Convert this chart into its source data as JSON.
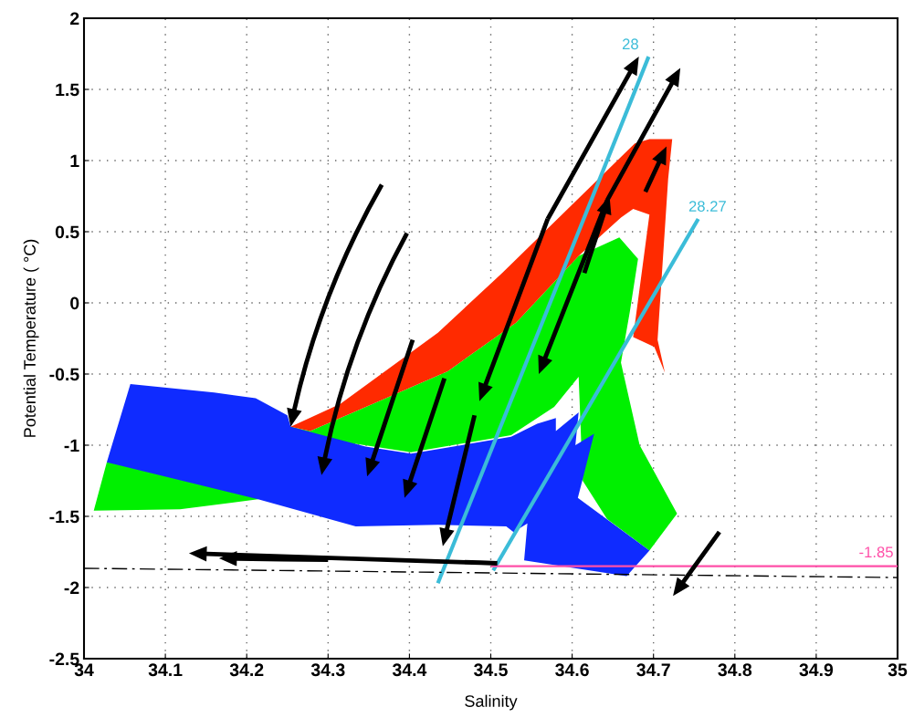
{
  "chart_data": {
    "type": "area",
    "xlabel": "Salinity",
    "ylabel": "Potential Temperature ( °C)",
    "xlim": [
      34,
      35
    ],
    "ylim": [
      -2.5,
      2
    ],
    "xticks": [
      34,
      34.1,
      34.2,
      34.3,
      34.4,
      34.5,
      34.6,
      34.7,
      34.8,
      34.9,
      35
    ],
    "yticks": [
      -2.5,
      -2,
      -1.5,
      -1,
      -0.5,
      0,
      0.5,
      1,
      1.5,
      2
    ],
    "grid": true,
    "legend": false,
    "series": [
      {
        "color": "#00f000",
        "x": [
          34.012,
          34.028,
          34.254,
          34.278,
          34.371,
          34.447,
          34.531,
          34.608,
          34.658,
          34.681,
          34.671,
          34.66,
          34.683,
          34.729,
          34.695,
          34.643,
          34.613,
          34.608,
          34.578,
          34.525,
          34.402,
          34.334,
          34.214,
          34.118
        ],
        "values": [
          -1.46,
          -1.12,
          -0.87,
          -0.9,
          -0.67,
          -0.48,
          -0.14,
          0.33,
          0.46,
          0.31,
          -0.06,
          -0.42,
          -1.0,
          -1.48,
          -1.74,
          -1.52,
          -1.25,
          -0.52,
          -0.73,
          -0.93,
          -1.05,
          -0.99,
          -1.38,
          -1.45
        ]
      },
      {
        "color": "#ff2a00",
        "x": [
          34.254,
          34.315,
          34.435,
          34.514,
          34.677,
          34.695,
          34.723,
          34.718,
          34.705,
          34.714,
          34.701,
          34.675,
          34.695,
          34.675,
          34.66,
          34.608,
          34.531,
          34.447,
          34.371,
          34.278
        ],
        "values": [
          -0.87,
          -0.71,
          -0.21,
          0.21,
          1.12,
          1.15,
          1.15,
          0.87,
          -0.26,
          -0.49,
          -0.31,
          -0.24,
          0.62,
          0.66,
          0.6,
          0.33,
          -0.14,
          -0.48,
          -0.67,
          -0.9
        ]
      },
      {
        "color": "#0f2bff",
        "x": [
          34.057,
          34.16,
          34.211,
          34.25,
          34.254,
          34.346,
          34.402,
          34.525,
          34.557,
          34.58,
          34.58,
          34.608,
          34.604,
          34.627,
          34.612,
          34.607,
          34.695,
          34.667,
          34.541,
          34.545,
          34.528,
          34.519,
          34.435,
          34.334,
          34.214,
          34.121,
          34.028
        ],
        "values": [
          -0.57,
          -0.63,
          -0.67,
          -0.79,
          -0.87,
          -1.01,
          -1.06,
          -0.94,
          -0.85,
          -0.81,
          -0.9,
          -0.77,
          -1.0,
          -0.92,
          -1.26,
          -1.37,
          -1.74,
          -1.92,
          -1.81,
          -1.55,
          -1.61,
          -1.57,
          -1.56,
          -1.57,
          -1.38,
          -1.25,
          -1.12
        ]
      },
      {
        "type": "line",
        "name": "28",
        "color": "#3bbcd8",
        "x": [
          34.435,
          34.694
        ],
        "values": [
          -1.97,
          1.73
        ]
      },
      {
        "type": "line",
        "name": "28.27",
        "color": "#3bbcd8",
        "x": [
          34.503,
          34.755
        ],
        "values": [
          -1.88,
          0.59
        ]
      },
      {
        "type": "line",
        "name": "-1.85",
        "color": "#ff4fa8",
        "x": [
          34.5,
          35
        ],
        "values": [
          -1.85,
          -1.85
        ]
      },
      {
        "type": "line",
        "color": "#000000",
        "line_style": "dashdot",
        "x": [
          34,
          35
        ],
        "values": [
          -1.865,
          -1.93
        ]
      }
    ]
  }
}
